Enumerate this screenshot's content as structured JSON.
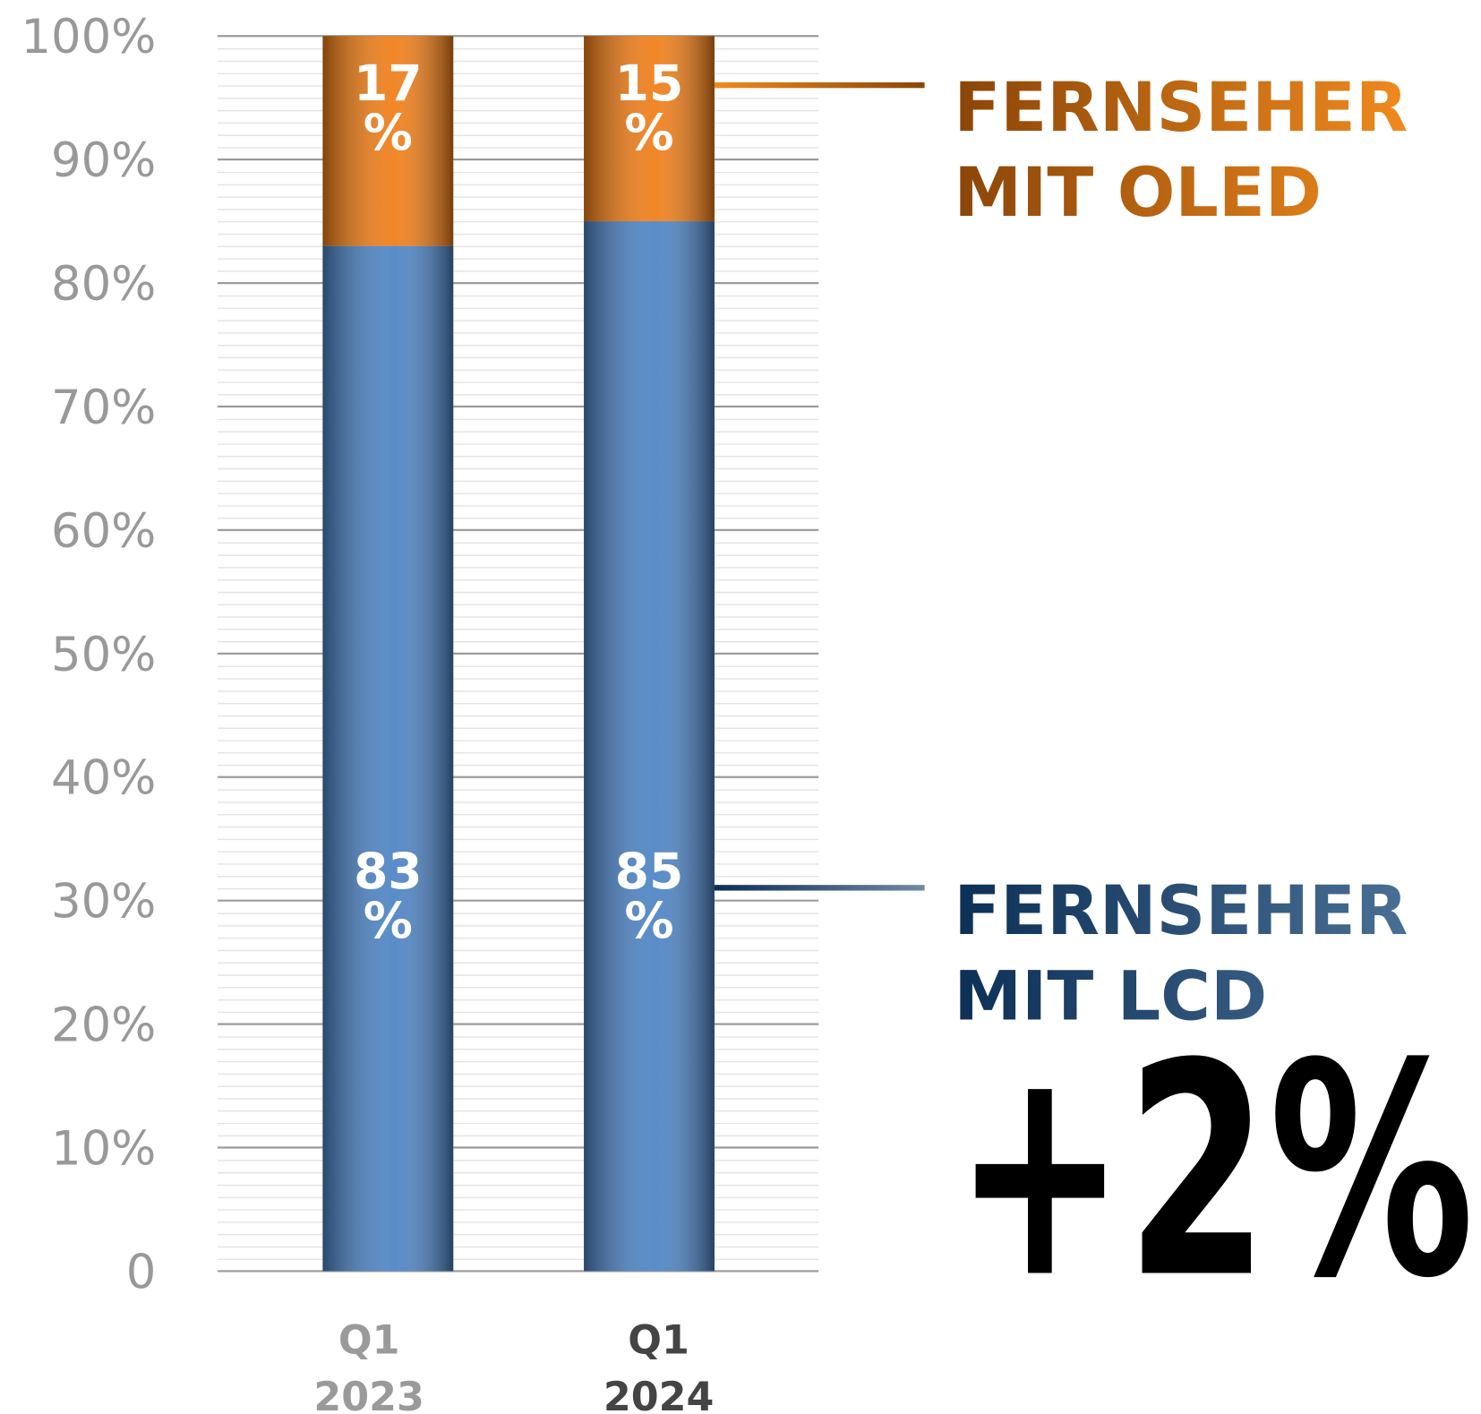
{
  "chart_data": {
    "type": "stacked_bar",
    "categories": [
      "Q1 2023",
      "Q1 2024"
    ],
    "series": [
      {
        "name": "FERNSEHER MIT LCD",
        "color": "#4a82c4",
        "values": [
          83,
          85
        ],
        "value_labels": [
          "83 %",
          "85 %"
        ]
      },
      {
        "name": "FERNSEHER MIT OLED",
        "color": "#f07c14",
        "values": [
          17,
          15
        ],
        "value_labels": [
          "17 %",
          "15 %"
        ]
      }
    ],
    "annotation": "+2%",
    "ylim": [
      0,
      100
    ],
    "yticks": [
      0,
      {
        "value": 10,
        "label": "10%"
      },
      {
        "value": 20,
        "label": "20%"
      },
      {
        "value": 30,
        "label": "30%"
      },
      {
        "value": 40,
        "label": "40%"
      },
      {
        "value": 50,
        "label": "50%"
      },
      {
        "value": 60,
        "label": "60%"
      },
      {
        "value": 70,
        "label": "70%"
      },
      {
        "value": 80,
        "label": "80%"
      },
      {
        "value": 90,
        "label": "90%"
      },
      {
        "value": 100,
        "label": "100%"
      }
    ],
    "grid": true
  }
}
